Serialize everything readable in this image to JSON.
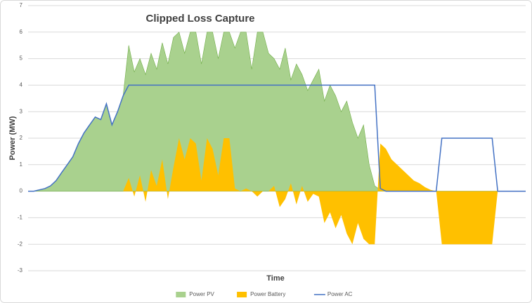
{
  "chart_data": {
    "type": "area",
    "title": "Clipped Loss Capture",
    "x_label": "Time",
    "y_label": "Power (MW)",
    "categories": [
      null,
      null,
      null,
      null,
      null,
      null,
      null,
      null,
      null,
      null,
      null,
      null,
      null,
      null,
      null,
      null,
      null,
      null,
      null,
      null,
      null,
      null,
      null,
      null,
      null,
      null,
      null,
      null,
      null,
      null,
      null,
      null,
      null,
      null,
      null,
      null,
      null,
      null,
      null,
      null,
      null,
      null,
      null,
      null,
      null,
      null,
      null,
      null,
      null,
      null,
      null,
      null,
      null,
      null,
      null,
      null,
      null,
      null,
      null,
      null,
      null,
      null,
      null,
      null,
      null,
      null,
      null,
      null,
      null,
      null,
      null,
      null,
      null,
      null,
      null,
      null,
      null,
      null,
      null,
      null,
      null,
      null,
      null,
      null,
      null,
      null,
      null,
      null,
      null,
      null
    ],
    "series": [
      {
        "name": "Power PV",
        "color": "#a9d18e",
        "kind": "area",
        "values": [
          0,
          0,
          0.05,
          0.1,
          0.2,
          0.4,
          0.7,
          1.0,
          1.3,
          1.8,
          2.2,
          2.5,
          2.8,
          2.7,
          3.3,
          2.5,
          3.0,
          3.6,
          5.5,
          4.5,
          5.0,
          4.4,
          5.2,
          4.6,
          5.6,
          4.8,
          5.8,
          6,
          5.2,
          6,
          6,
          4.8,
          6,
          6,
          5.0,
          6,
          6,
          5.4,
          6,
          6,
          4.6,
          6,
          6,
          5.2,
          5.0,
          4.6,
          5.4,
          4.2,
          4.8,
          4.4,
          3.8,
          4.2,
          4.6,
          3.4,
          4.0,
          3.6,
          3.0,
          3.4,
          2.6,
          2.0,
          2.5,
          1.0,
          0.2,
          0.05,
          0,
          0,
          0,
          0,
          0,
          0,
          0,
          0,
          0,
          0,
          0,
          0,
          0,
          0,
          0,
          0,
          0,
          0,
          0,
          0,
          0,
          0,
          0,
          0,
          0,
          0
        ]
      },
      {
        "name": "Power Battery",
        "color": "#ffc000",
        "kind": "area",
        "values": [
          0,
          0,
          0,
          0,
          0,
          0,
          0,
          0,
          0,
          0,
          0,
          0,
          0,
          0,
          0,
          0,
          0,
          0,
          0.5,
          -0.2,
          0.6,
          -0.4,
          0.8,
          0.2,
          1.2,
          -0.3,
          0.9,
          2.0,
          1.2,
          2.0,
          1.8,
          0.4,
          2.0,
          1.6,
          0.6,
          2.0,
          2.0,
          0.1,
          0,
          0.1,
          0,
          -0.2,
          0,
          0,
          0.2,
          -0.6,
          -0.3,
          0.3,
          -0.5,
          0.2,
          -0.4,
          -0.1,
          -0.2,
          -1.2,
          -0.8,
          -1.4,
          -0.9,
          -1.6,
          -2.0,
          -1.2,
          -1.8,
          -2.0,
          -2.0,
          1.8,
          1.6,
          1.2,
          1.0,
          0.8,
          0.6,
          0.4,
          0.3,
          0.15,
          0.05,
          0,
          -2,
          -2,
          -2,
          -2,
          -2,
          -2,
          -2,
          -2,
          -2,
          -2,
          0,
          0,
          0,
          0,
          0,
          0
        ]
      },
      {
        "name": "Power AC",
        "color": "#4472c4",
        "kind": "line",
        "values": [
          0,
          0,
          0.05,
          0.1,
          0.2,
          0.4,
          0.7,
          1.0,
          1.3,
          1.8,
          2.2,
          2.5,
          2.8,
          2.7,
          3.3,
          2.5,
          3.0,
          3.6,
          4,
          4,
          4,
          4,
          4,
          4,
          4,
          4,
          4,
          4,
          4,
          4,
          4,
          4,
          4,
          4,
          4,
          4,
          4,
          4,
          4,
          4,
          4,
          4,
          4,
          4,
          4,
          4,
          4,
          4,
          4,
          4,
          4,
          4,
          4,
          4,
          4,
          4,
          4,
          4,
          4,
          4,
          4,
          4,
          4,
          0.1,
          0,
          0,
          0,
          0,
          0,
          0,
          0,
          0,
          0,
          0,
          2,
          2,
          2,
          2,
          2,
          2,
          2,
          2,
          2,
          2,
          0,
          0,
          0,
          0,
          0,
          0
        ]
      }
    ],
    "ylim": [
      -3,
      7
    ],
    "yticks": [
      -3,
      -2,
      -1,
      0,
      1,
      2,
      3,
      4,
      5,
      6,
      7
    ],
    "grid": true,
    "legend": "bottom"
  }
}
